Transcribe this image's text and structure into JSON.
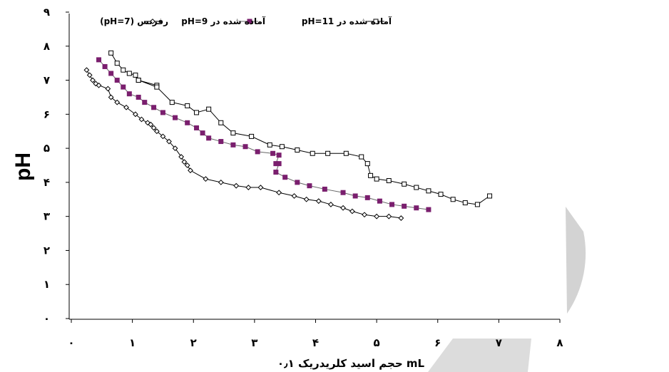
{
  "chart_data": {
    "type": "line",
    "title": "",
    "ylabel": "pH",
    "xlabel": "حجم اسید کلریدریک ۰٫۱ mL",
    "xlim": [
      0,
      8
    ],
    "ylim": [
      0,
      9
    ],
    "x_ticks": [
      "۰",
      "۱",
      "۲",
      "۳",
      "۴",
      "۵",
      "۶",
      "۷",
      "۸"
    ],
    "y_ticks": [
      "۰",
      "۱",
      "۲",
      "۳",
      "۴",
      "۵",
      "۶",
      "۷",
      "۸",
      "۹"
    ],
    "legend_position": "top",
    "series": [
      {
        "name": "(pH=7) رفرنس",
        "marker": "diamond",
        "color": "#000000",
        "marker_fill": "#ffffff",
        "x": [
          0.25,
          0.3,
          0.35,
          0.4,
          0.45,
          0.6,
          0.65,
          0.75,
          0.9,
          1.05,
          1.15,
          1.25,
          1.3,
          1.35,
          1.4,
          1.5,
          1.6,
          1.7,
          1.8,
          1.85,
          1.9,
          1.95,
          2.2,
          2.45,
          2.7,
          2.9,
          3.1,
          3.4,
          3.65,
          3.85,
          4.05,
          4.25,
          4.45,
          4.6,
          4.8,
          5.0,
          5.2,
          5.4
        ],
        "y": [
          7.3,
          7.15,
          7.0,
          6.9,
          6.85,
          6.75,
          6.5,
          6.35,
          6.2,
          6.0,
          5.85,
          5.75,
          5.7,
          5.6,
          5.5,
          5.35,
          5.2,
          5.0,
          4.75,
          4.6,
          4.5,
          4.35,
          4.1,
          4.0,
          3.9,
          3.85,
          3.85,
          3.7,
          3.6,
          3.5,
          3.45,
          3.35,
          3.25,
          3.15,
          3.05,
          3.0,
          3.0,
          2.95
        ]
      },
      {
        "name": "آماده شده در pH=9",
        "marker": "square",
        "color": "#666666",
        "marker_fill": "#7a1f6e",
        "x": [
          0.45,
          0.55,
          0.65,
          0.75,
          0.85,
          0.95,
          1.1,
          1.2,
          1.35,
          1.5,
          1.7,
          1.9,
          2.05,
          2.15,
          2.25,
          2.45,
          2.65,
          2.85,
          3.05,
          3.3,
          3.4,
          3.35,
          3.4,
          3.35,
          3.5,
          3.7,
          3.9,
          4.15,
          4.45,
          4.65,
          4.85,
          5.05,
          5.25,
          5.45,
          5.65,
          5.85
        ],
        "y": [
          7.6,
          7.4,
          7.2,
          7.0,
          6.8,
          6.6,
          6.5,
          6.35,
          6.2,
          6.05,
          5.9,
          5.75,
          5.6,
          5.45,
          5.3,
          5.2,
          5.1,
          5.05,
          4.9,
          4.85,
          4.8,
          4.55,
          4.55,
          4.3,
          4.15,
          4.0,
          3.9,
          3.8,
          3.7,
          3.6,
          3.55,
          3.45,
          3.35,
          3.3,
          3.25,
          3.2
        ]
      },
      {
        "name": "آماده شده در pH=11",
        "marker": "square",
        "color": "#000000",
        "marker_fill": "#ffffff",
        "x": [
          0.65,
          0.75,
          0.85,
          0.95,
          1.05,
          1.1,
          1.4,
          1.1,
          1.4,
          1.65,
          1.9,
          2.05,
          2.25,
          2.45,
          2.65,
          2.95,
          3.25,
          3.45,
          3.7,
          3.95,
          4.2,
          4.5,
          4.75,
          4.85,
          4.9,
          5.0,
          5.2,
          5.45,
          5.65,
          5.85,
          6.05,
          6.25,
          6.45,
          6.65,
          6.85
        ],
        "y": [
          7.8,
          7.5,
          7.3,
          7.2,
          7.15,
          7.0,
          6.85,
          7.0,
          6.8,
          6.35,
          6.25,
          6.05,
          6.15,
          5.75,
          5.45,
          5.35,
          5.1,
          5.05,
          4.95,
          4.85,
          4.85,
          4.85,
          4.75,
          4.55,
          4.2,
          4.1,
          4.05,
          3.95,
          3.85,
          3.75,
          3.65,
          3.5,
          3.4,
          3.35,
          3.6
        ]
      }
    ]
  }
}
